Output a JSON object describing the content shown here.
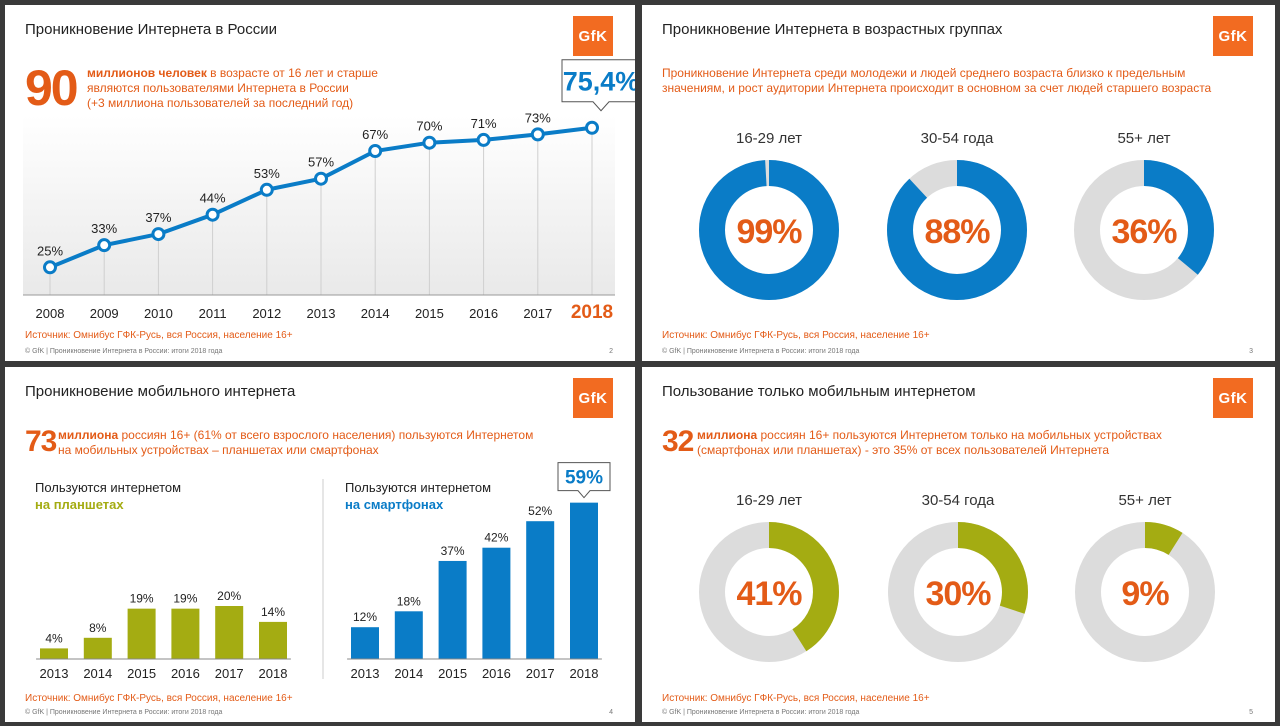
{
  "slide1": {
    "title": "Проникновение Интернета в России",
    "logo": "GfK",
    "big_number": "90",
    "lead_bold": "миллионов человек",
    "lead_rest": " в возрасте от 16 лет и старше",
    "lead_line2": "являются пользователями Интернета в России",
    "lead_line3": "(+3 миллиона пользователей за последний год)",
    "callout": "75,4%",
    "source": "Источник: Омнибус ГФК-Русь, вся Россия, население 16+",
    "footer": "© GfK | Проникновение Интернета в России: итоги 2018 года",
    "page": "2"
  },
  "slide2": {
    "title": "Проникновение Интернета в возрастных группах",
    "logo": "GfK",
    "lead_line1": "Проникновение Интернета среди молодежи и людей среднего возраста близко к предельным",
    "lead_line2": "значениям, и рост аудитории Интернета происходит в основном за счет людей старшего возраста",
    "source": "Источник: Омнибус ГФК-Русь, вся Россия, население 16+",
    "footer": "© GfK | Проникновение Интернета в России: итоги 2018 года",
    "page": "3"
  },
  "slide3": {
    "title": "Проникновение мобильного интернета",
    "logo": "GfK",
    "big_number": "73",
    "lead_bold": "миллиона",
    "lead_rest": " россиян 16+ (61% от всего взрослого населения) пользуются Интернетом",
    "lead_line2": "на мобильных устройствах – планшетах или смартфонах",
    "left_title": "Пользуются интернетом",
    "left_sub": "на планшетах",
    "right_title": "Пользуются интернетом",
    "right_sub": "на смартфонах",
    "callout": "59%",
    "source": "Источник: Омнибус ГФК-Русь, вся Россия, население 16+",
    "footer": "© GfK | Проникновение Интернета в России: итоги 2018 года",
    "page": "4"
  },
  "slide4": {
    "title": "Пользование только мобильным интернетом",
    "logo": "GfK",
    "big_number": "32",
    "lead_bold": "миллиона",
    "lead_rest": " россиян 16+ пользуются Интернетом только на мобильных устройствах",
    "lead_line2": "(смартфонах или планшетах) - это 35% от всех пользователей Интернета",
    "source": "Источник: Омнибус ГФК-Русь, вся Россия, население 16+",
    "footer": "© GfK | Проникновение Интернета в России: итоги 2018 года",
    "page": "5"
  },
  "colors": {
    "blue": "#0a7cc7",
    "orange": "#e35b17",
    "olive": "#a4ac12",
    "gray": "#dcdcdc"
  },
  "chart_data": [
    {
      "type": "line",
      "title": "Проникновение Интернета в России",
      "x": [
        "2008",
        "2009",
        "2010",
        "2011",
        "2012",
        "2013",
        "2014",
        "2015",
        "2016",
        "2017",
        "2018"
      ],
      "values": [
        25,
        33,
        37,
        44,
        53,
        57,
        67,
        70,
        71,
        73,
        75.4
      ],
      "labels": [
        "25%",
        "33%",
        "37%",
        "44%",
        "53%",
        "57%",
        "67%",
        "70%",
        "71%",
        "73%",
        ""
      ],
      "ylim": [
        15,
        80
      ]
    },
    {
      "type": "pie",
      "title": "Проникновение Интернета в возрастных группах",
      "donuts": [
        {
          "label": "16-29 лет",
          "value": 99,
          "text": "99%"
        },
        {
          "label": "30-54 года",
          "value": 88,
          "text": "88%"
        },
        {
          "label": "55+ лет",
          "value": 36,
          "text": "36%"
        }
      ]
    },
    {
      "type": "bar",
      "title": "Пользуются интернетом на планшетах",
      "categories": [
        "2013",
        "2014",
        "2015",
        "2016",
        "2017",
        "2018"
      ],
      "values": [
        4,
        8,
        19,
        19,
        20,
        14
      ],
      "labels": [
        "4%",
        "8%",
        "19%",
        "19%",
        "20%",
        "14%"
      ],
      "ylim": [
        0,
        62
      ]
    },
    {
      "type": "bar",
      "title": "Пользуются интернетом на смартфонах",
      "categories": [
        "2013",
        "2014",
        "2015",
        "2016",
        "2017",
        "2018"
      ],
      "values": [
        12,
        18,
        37,
        42,
        52,
        59
      ],
      "labels": [
        "12%",
        "18%",
        "37%",
        "42%",
        "52%",
        ""
      ],
      "ylim": [
        0,
        62
      ]
    },
    {
      "type": "pie",
      "title": "Пользование только мобильным интернетом",
      "donuts": [
        {
          "label": "16-29 лет",
          "value": 41,
          "text": "41%"
        },
        {
          "label": "30-54 года",
          "value": 30,
          "text": "30%"
        },
        {
          "label": "55+ лет",
          "value": 9,
          "text": "9%"
        }
      ]
    }
  ]
}
